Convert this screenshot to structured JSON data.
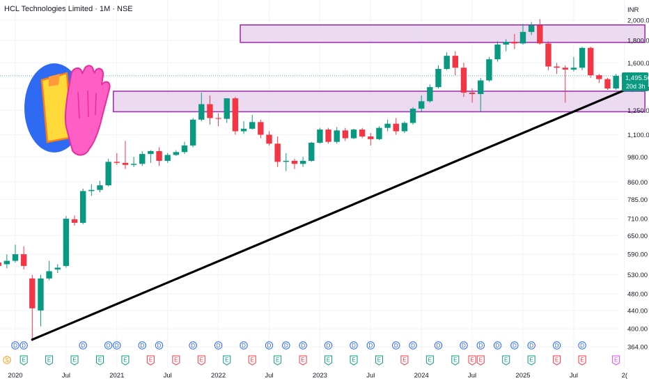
{
  "header": {
    "title": "HCL Technologies Limited · 1M · NSE",
    "currency": "INR"
  },
  "price_badge": {
    "price": "1,495.50",
    "countdown": "20d 3h",
    "color": "#089981"
  },
  "colors": {
    "up": "#089981",
    "down": "#f23645",
    "zone_fill": "#e9d4ef",
    "zone_border": "#9c27b0",
    "trendline": "#000000",
    "dividend": "#2962ff",
    "earnings_up": "#089981",
    "earnings_down": "#f23645",
    "split": "#ff9800",
    "future_earnings": "#e040fb"
  },
  "events": {
    "dividend_label": "D",
    "earnings_label": "E",
    "split_label": "S"
  },
  "chart_data": {
    "type": "candlestick",
    "interval": "1M",
    "scale": "log",
    "ylim": [
      355,
      2050
    ],
    "y_ticks": [
      "2,000.00",
      "1,800.00",
      "1,600.00",
      "1,400.00",
      "1,250.00",
      "1,100.00",
      "980.00",
      "860.00",
      "785.00",
      "710.00",
      "650.00",
      "590.00",
      "530.00",
      "480.00",
      "440.00",
      "400.00",
      "364.00"
    ],
    "y_tick_values": [
      2000,
      1800,
      1600,
      1400,
      1250,
      1100,
      980,
      860,
      785,
      710,
      650,
      590,
      530,
      480,
      440,
      400,
      364
    ],
    "x_ticks": [
      {
        "label": "2020",
        "month": 0
      },
      {
        "label": "Jul",
        "month": 6
      },
      {
        "label": "2021",
        "month": 12
      },
      {
        "label": "Jul",
        "month": 18
      },
      {
        "label": "2022",
        "month": 24
      },
      {
        "label": "Jul",
        "month": 30
      },
      {
        "label": "2023",
        "month": 36
      },
      {
        "label": "Jul",
        "month": 42
      },
      {
        "label": "2024",
        "month": 48
      },
      {
        "label": "Jul",
        "month": 54
      },
      {
        "label": "2025",
        "month": 60
      },
      {
        "label": "Jul",
        "month": 66
      },
      {
        "label": "2(",
        "month": 72
      }
    ],
    "candles": [
      {
        "m": -2,
        "o": 565,
        "h": 578,
        "l": 545,
        "c": 555
      },
      {
        "m": -1,
        "o": 560,
        "h": 590,
        "l": 548,
        "c": 570
      },
      {
        "m": 0,
        "o": 570,
        "h": 620,
        "l": 565,
        "c": 590
      },
      {
        "m": 1,
        "o": 590,
        "h": 615,
        "l": 545,
        "c": 555
      },
      {
        "m": 2,
        "o": 520,
        "h": 530,
        "l": 375,
        "c": 445
      },
      {
        "m": 3,
        "o": 440,
        "h": 530,
        "l": 405,
        "c": 520
      },
      {
        "m": 4,
        "o": 520,
        "h": 570,
        "l": 515,
        "c": 540
      },
      {
        "m": 5,
        "o": 545,
        "h": 560,
        "l": 535,
        "c": 550
      },
      {
        "m": 6,
        "o": 555,
        "h": 720,
        "l": 550,
        "c": 710
      },
      {
        "m": 7,
        "o": 708,
        "h": 722,
        "l": 685,
        "c": 695
      },
      {
        "m": 8,
        "o": 695,
        "h": 830,
        "l": 690,
        "c": 820
      },
      {
        "m": 9,
        "o": 820,
        "h": 850,
        "l": 800,
        "c": 825
      },
      {
        "m": 10,
        "o": 825,
        "h": 865,
        "l": 815,
        "c": 845
      },
      {
        "m": 11,
        "o": 845,
        "h": 970,
        "l": 840,
        "c": 955
      },
      {
        "m": 12,
        "o": 955,
        "h": 1000,
        "l": 940,
        "c": 950
      },
      {
        "m": 13,
        "o": 950,
        "h": 1065,
        "l": 920,
        "c": 940
      },
      {
        "m": 14,
        "o": 940,
        "h": 980,
        "l": 930,
        "c": 945
      },
      {
        "m": 15,
        "o": 945,
        "h": 1010,
        "l": 935,
        "c": 995
      },
      {
        "m": 16,
        "o": 995,
        "h": 1015,
        "l": 950,
        "c": 1010
      },
      {
        "m": 17,
        "o": 1010,
        "h": 1030,
        "l": 935,
        "c": 960
      },
      {
        "m": 18,
        "o": 960,
        "h": 1000,
        "l": 950,
        "c": 990
      },
      {
        "m": 19,
        "o": 990,
        "h": 1015,
        "l": 985,
        "c": 1005
      },
      {
        "m": 20,
        "o": 1005,
        "h": 1060,
        "l": 995,
        "c": 1040
      },
      {
        "m": 21,
        "o": 1040,
        "h": 1200,
        "l": 1030,
        "c": 1190
      },
      {
        "m": 22,
        "o": 1190,
        "h": 1370,
        "l": 1180,
        "c": 1290
      },
      {
        "m": 23,
        "o": 1290,
        "h": 1350,
        "l": 1160,
        "c": 1200
      },
      {
        "m": 24,
        "o": 1200,
        "h": 1230,
        "l": 1150,
        "c": 1195
      },
      {
        "m": 25,
        "o": 1195,
        "h": 1320,
        "l": 1170,
        "c": 1330
      },
      {
        "m": 26,
        "o": 1330,
        "h": 1340,
        "l": 1100,
        "c": 1120
      },
      {
        "m": 27,
        "o": 1120,
        "h": 1180,
        "l": 1105,
        "c": 1135
      },
      {
        "m": 28,
        "o": 1135,
        "h": 1220,
        "l": 1130,
        "c": 1175
      },
      {
        "m": 29,
        "o": 1175,
        "h": 1190,
        "l": 1080,
        "c": 1100
      },
      {
        "m": 30,
        "o": 1100,
        "h": 1120,
        "l": 1040,
        "c": 1050
      },
      {
        "m": 31,
        "o": 1050,
        "h": 1090,
        "l": 930,
        "c": 955
      },
      {
        "m": 32,
        "o": 955,
        "h": 1000,
        "l": 910,
        "c": 960
      },
      {
        "m": 33,
        "o": 960,
        "h": 970,
        "l": 920,
        "c": 945
      },
      {
        "m": 34,
        "o": 945,
        "h": 980,
        "l": 930,
        "c": 960
      },
      {
        "m": 35,
        "o": 960,
        "h": 1060,
        "l": 955,
        "c": 1055
      },
      {
        "m": 36,
        "o": 1055,
        "h": 1140,
        "l": 1050,
        "c": 1130
      },
      {
        "m": 37,
        "o": 1130,
        "h": 1140,
        "l": 1050,
        "c": 1060
      },
      {
        "m": 38,
        "o": 1060,
        "h": 1145,
        "l": 1050,
        "c": 1125
      },
      {
        "m": 39,
        "o": 1125,
        "h": 1140,
        "l": 1065,
        "c": 1080
      },
      {
        "m": 40,
        "o": 1080,
        "h": 1135,
        "l": 1075,
        "c": 1130
      },
      {
        "m": 41,
        "o": 1130,
        "h": 1140,
        "l": 1080,
        "c": 1090
      },
      {
        "m": 42,
        "o": 1090,
        "h": 1110,
        "l": 1040,
        "c": 1075
      },
      {
        "m": 43,
        "o": 1075,
        "h": 1150,
        "l": 1070,
        "c": 1140
      },
      {
        "m": 44,
        "o": 1140,
        "h": 1190,
        "l": 1120,
        "c": 1165
      },
      {
        "m": 45,
        "o": 1165,
        "h": 1200,
        "l": 1100,
        "c": 1120
      },
      {
        "m": 46,
        "o": 1120,
        "h": 1180,
        "l": 1110,
        "c": 1170
      },
      {
        "m": 47,
        "o": 1170,
        "h": 1270,
        "l": 1160,
        "c": 1260
      },
      {
        "m": 48,
        "o": 1260,
        "h": 1350,
        "l": 1240,
        "c": 1310
      },
      {
        "m": 49,
        "o": 1310,
        "h": 1430,
        "l": 1300,
        "c": 1410
      },
      {
        "m": 50,
        "o": 1410,
        "h": 1580,
        "l": 1400,
        "c": 1550
      },
      {
        "m": 51,
        "o": 1550,
        "h": 1690,
        "l": 1540,
        "c": 1660
      },
      {
        "m": 52,
        "o": 1660,
        "h": 1700,
        "l": 1500,
        "c": 1560
      },
      {
        "m": 53,
        "o": 1560,
        "h": 1600,
        "l": 1340,
        "c": 1370
      },
      {
        "m": 54,
        "o": 1370,
        "h": 1400,
        "l": 1300,
        "c": 1360
      },
      {
        "m": 55,
        "o": 1360,
        "h": 1480,
        "l": 1240,
        "c": 1460
      },
      {
        "m": 56,
        "o": 1460,
        "h": 1650,
        "l": 1450,
        "c": 1630
      },
      {
        "m": 57,
        "o": 1630,
        "h": 1790,
        "l": 1610,
        "c": 1760
      },
      {
        "m": 58,
        "o": 1760,
        "h": 1810,
        "l": 1700,
        "c": 1785
      },
      {
        "m": 59,
        "o": 1785,
        "h": 1860,
        "l": 1720,
        "c": 1770
      },
      {
        "m": 60,
        "o": 1770,
        "h": 1960,
        "l": 1760,
        "c": 1880
      },
      {
        "m": 61,
        "o": 1880,
        "h": 1980,
        "l": 1850,
        "c": 1945
      },
      {
        "m": 62,
        "o": 1945,
        "h": 2010,
        "l": 1760,
        "c": 1770
      },
      {
        "m": 63,
        "o": 1770,
        "h": 1790,
        "l": 1540,
        "c": 1570
      },
      {
        "m": 64,
        "o": 1570,
        "h": 1600,
        "l": 1510,
        "c": 1560
      },
      {
        "m": 65,
        "o": 1560,
        "h": 1580,
        "l": 1300,
        "c": 1545
      },
      {
        "m": 66,
        "o": 1545,
        "h": 1650,
        "l": 1530,
        "c": 1560
      },
      {
        "m": 67,
        "o": 1560,
        "h": 1740,
        "l": 1540,
        "c": 1730
      },
      {
        "m": 68,
        "o": 1730,
        "h": 1740,
        "l": 1480,
        "c": 1500
      },
      {
        "m": 69,
        "o": 1500,
        "h": 1510,
        "l": 1440,
        "c": 1470
      },
      {
        "m": 70,
        "o": 1470,
        "h": 1480,
        "l": 1390,
        "c": 1400
      },
      {
        "m": 71,
        "o": 1400,
        "h": 1510,
        "l": 1390,
        "c": 1495.5
      }
    ],
    "zones": [
      {
        "m_start": 27,
        "m_end": 74,
        "low": 1780,
        "high": 1950
      },
      {
        "m_start": 12,
        "m_end": 74,
        "low": 1240,
        "high": 1380
      }
    ],
    "trendline": {
      "m_start": 2,
      "v_start": 378,
      "m_end": 74,
      "v_end": 1440
    },
    "dividends": [
      0,
      1,
      8,
      11,
      12,
      15,
      17,
      21,
      24,
      27,
      30,
      32,
      34,
      37,
      40,
      42,
      45,
      47,
      50,
      53,
      55,
      57,
      59,
      61,
      64,
      67
    ],
    "earnings": [
      {
        "m": 1,
        "type": "up"
      },
      {
        "m": 4,
        "type": "up"
      },
      {
        "m": 7,
        "type": "up"
      },
      {
        "m": 10,
        "type": "up"
      },
      {
        "m": 13,
        "type": "up"
      },
      {
        "m": 16,
        "type": "down"
      },
      {
        "m": 19,
        "type": "down"
      },
      {
        "m": 22,
        "type": "down"
      },
      {
        "m": 25,
        "type": "up"
      },
      {
        "m": 28,
        "type": "down"
      },
      {
        "m": 31,
        "type": "up"
      },
      {
        "m": 34,
        "type": "down"
      },
      {
        "m": 37,
        "type": "up"
      },
      {
        "m": 40,
        "type": "up"
      },
      {
        "m": 43,
        "type": "up"
      },
      {
        "m": 46,
        "type": "down"
      },
      {
        "m": 49,
        "type": "up"
      },
      {
        "m": 52,
        "type": "up"
      },
      {
        "m": 54,
        "type": "down"
      },
      {
        "m": 55,
        "type": "down"
      },
      {
        "m": 58,
        "type": "up"
      },
      {
        "m": 61,
        "type": "up"
      },
      {
        "m": 64,
        "type": "down"
      },
      {
        "m": 67,
        "type": "down"
      },
      {
        "m": 71,
        "type": "future"
      }
    ],
    "splits": [
      0
    ]
  }
}
